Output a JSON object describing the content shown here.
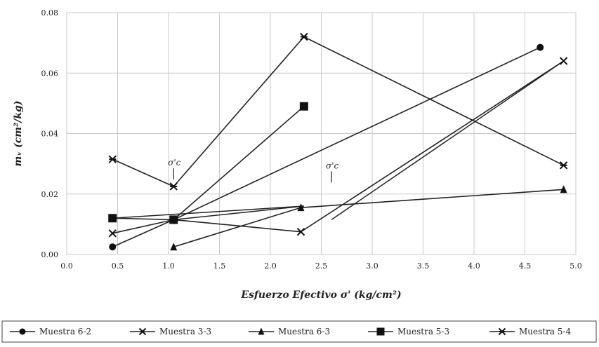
{
  "chart_data": {
    "type": "line",
    "xlabel": "Esfuerzo Efectivo σ' (kg/cm²)",
    "ylabel": "mᵥ (cm²/kg)",
    "xlim": [
      0.0,
      5.0
    ],
    "ylim": [
      0.0,
      0.08
    ],
    "x_ticks": [
      "0.0",
      "0.5",
      "1.0",
      "1.5",
      "2.0",
      "2.5",
      "3.0",
      "3.5",
      "4.0",
      "4.5",
      "5.0"
    ],
    "y_ticks": [
      "0.00",
      "0.02",
      "0.04",
      "0.06",
      "0.08"
    ],
    "grid": true,
    "legend_position": "bottom",
    "annotations": [
      {
        "text": "σ'c",
        "x": 1.05,
        "y": 0.0285
      },
      {
        "text": "σ'c",
        "x": 2.6,
        "y": 0.0275
      }
    ],
    "series": [
      {
        "name": "Muestra 6-2",
        "marker": "circle",
        "points": [
          [
            0.45,
            0.0025
          ],
          [
            1.05,
            0.0115
          ],
          [
            4.65,
            0.0685
          ]
        ]
      },
      {
        "name": "Muestra 3-3",
        "marker": "x",
        "points": [
          [
            0.45,
            0.007
          ],
          [
            1.05,
            0.0115
          ],
          [
            2.3,
            0.0075
          ],
          [
            4.88,
            0.064
          ]
        ]
      },
      {
        "name": "Muestra 6-3",
        "marker": "triangle",
        "points": [
          [
            1.05,
            0.0025
          ],
          [
            2.3,
            0.0155
          ],
          [
            4.88,
            0.0215
          ]
        ]
      },
      {
        "name": "Muestra 5-3",
        "marker": "square",
        "points": [
          [
            0.45,
            0.012
          ],
          [
            1.05,
            0.0115
          ],
          [
            2.33,
            0.049
          ]
        ]
      },
      {
        "name": "Muestra 5-4",
        "marker": "asterisk",
        "points": [
          [
            0.45,
            0.0315
          ],
          [
            1.05,
            0.0225
          ],
          [
            2.33,
            0.072
          ],
          [
            4.88,
            0.0295
          ]
        ]
      }
    ],
    "extra_segments": [
      {
        "points": [
          [
            0.45,
            0.012
          ],
          [
            2.33,
            0.016
          ]
        ]
      },
      {
        "points": [
          [
            1.05,
            0.0115
          ],
          [
            2.33,
            0.016
          ]
        ]
      },
      {
        "points": [
          [
            2.6,
            0.0115
          ],
          [
            4.88,
            0.064
          ]
        ]
      }
    ]
  }
}
